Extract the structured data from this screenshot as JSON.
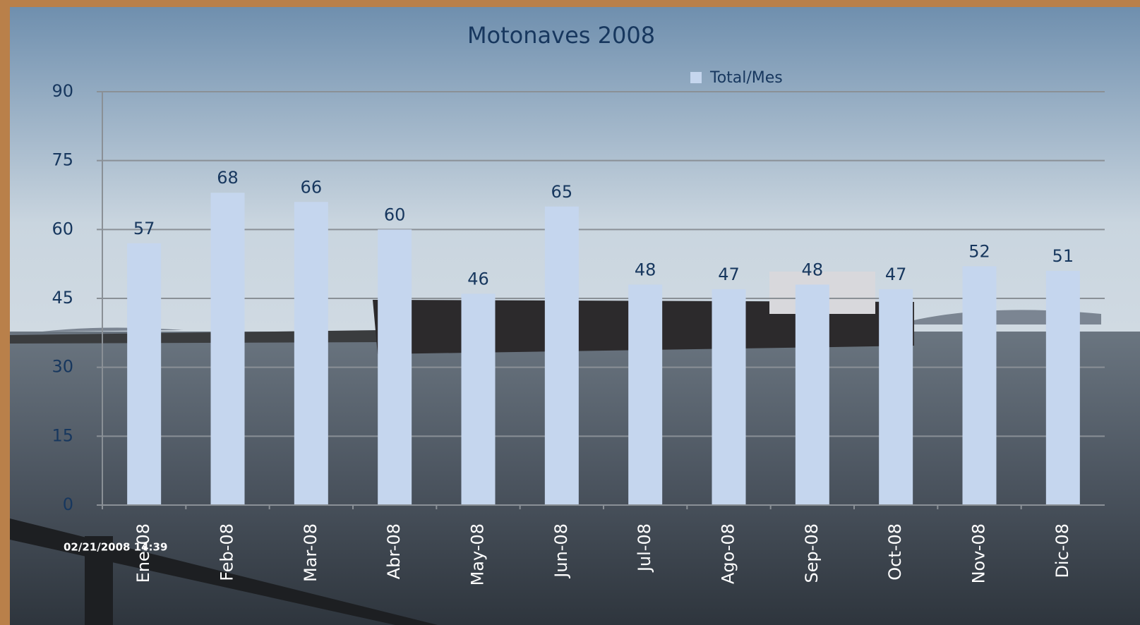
{
  "chart_data": {
    "type": "bar",
    "title": "Motonaves 2008",
    "categories": [
      "Ene-08",
      "Feb-08",
      "Mar-08",
      "Abr-08",
      "May-08",
      "Jun-08",
      "Jul-08",
      "Ago-08",
      "Sep-08",
      "Oct-08",
      "Nov-08",
      "Dic-08"
    ],
    "series": [
      {
        "name": "Total/Mes",
        "color": "#c5d6ee",
        "values": [
          57,
          68,
          66,
          60,
          46,
          65,
          48,
          47,
          48,
          47,
          52,
          51
        ]
      }
    ],
    "ylim": [
      0,
      90
    ],
    "yticks": [
      0,
      15,
      30,
      45,
      60,
      75,
      90
    ],
    "grid": true,
    "legend": "top",
    "annotation": "02/21/2008 14:39"
  }
}
